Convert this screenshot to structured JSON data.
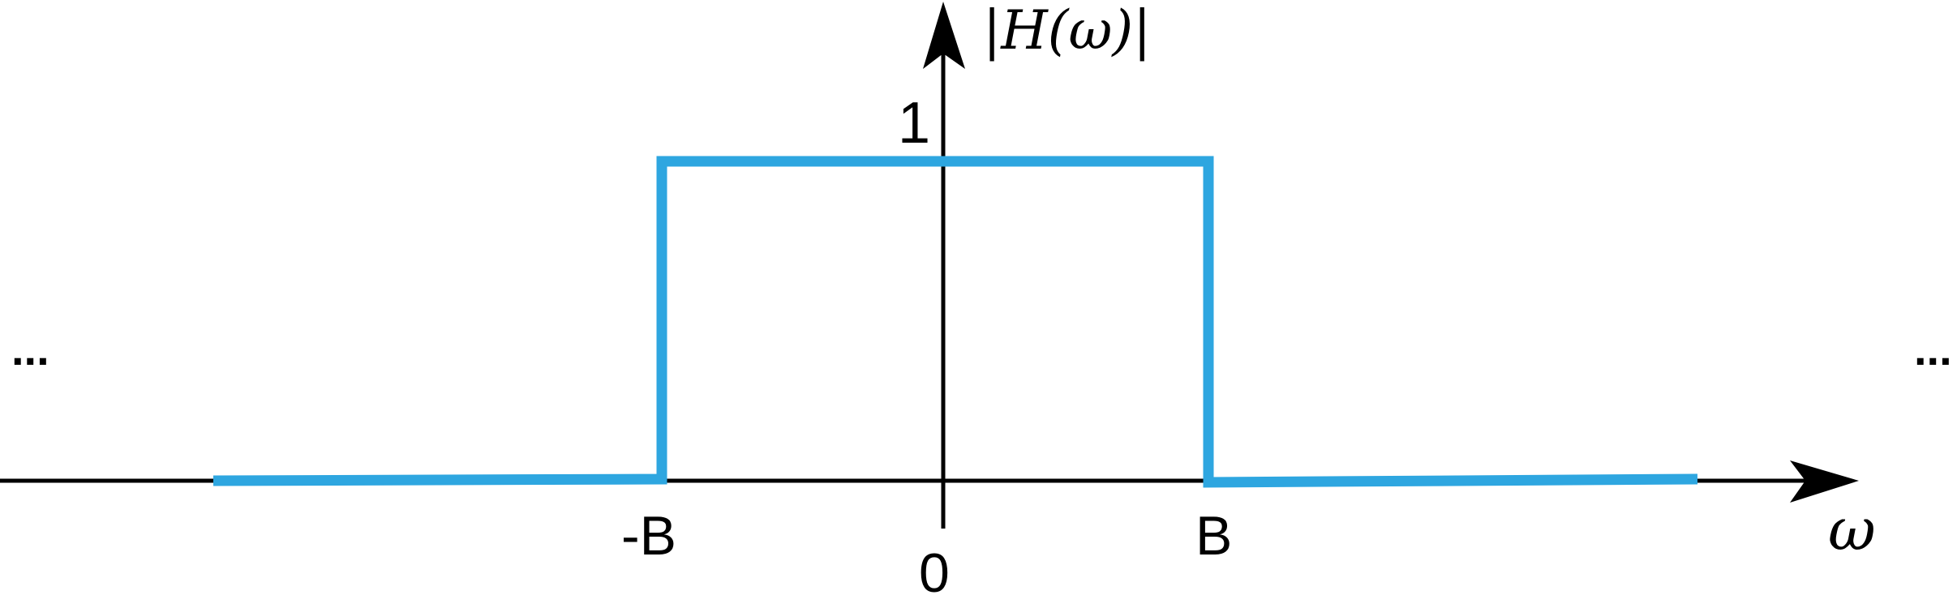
{
  "labels": {
    "y_axis": "|H(ω)|",
    "x_axis": "ω",
    "one": "1",
    "neg_b": "-B",
    "zero": "0",
    "pos_b": "B",
    "ellipsis_left": "...",
    "ellipsis_right": "..."
  },
  "colors": {
    "axis": "#000000",
    "response": "#2ea6e0"
  },
  "response": {
    "description_points": [
      {
        "omega": "-inf",
        "magnitude": 0
      },
      {
        "omega": "-B",
        "magnitude": 0
      },
      {
        "omega": "-B",
        "magnitude": 1
      },
      {
        "omega": "B",
        "magnitude": 1
      },
      {
        "omega": "B",
        "magnitude": 0
      },
      {
        "omega": "inf",
        "magnitude": 0
      }
    ]
  }
}
